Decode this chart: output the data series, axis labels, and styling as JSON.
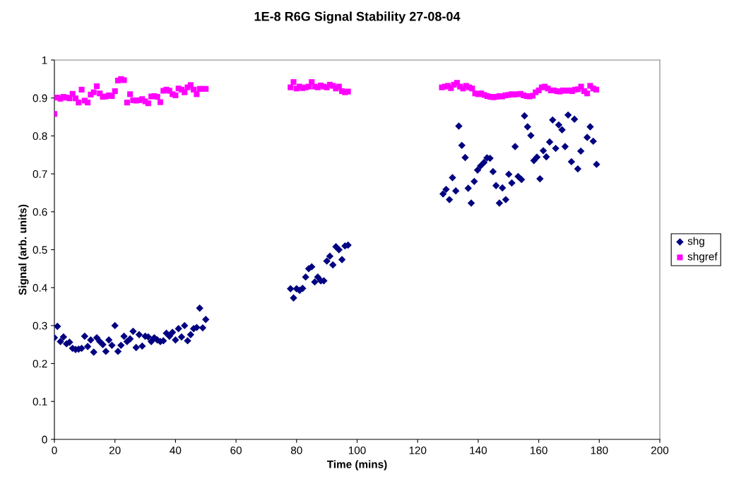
{
  "chart_data": {
    "type": "scatter",
    "title": "1E-8 R6G Signal Stability 27-08-04",
    "xlabel": "Time (mins)",
    "ylabel": "Signal (arb. units)",
    "xlim": [
      0,
      200
    ],
    "xticks": [
      0,
      20,
      40,
      60,
      80,
      100,
      120,
      140,
      160,
      180,
      200
    ],
    "ylim": [
      0,
      1
    ],
    "yticks": [
      0,
      0.1,
      0.2,
      0.3,
      0.4,
      0.5,
      0.6,
      0.7,
      0.8,
      0.9,
      1
    ],
    "grid": false,
    "legend": "right",
    "series": [
      {
        "name": "shg",
        "color": "#000080",
        "marker": "diamond",
        "x": [
          0,
          1,
          2,
          3,
          4,
          5,
          6,
          7,
          8,
          9,
          10,
          11,
          12,
          13,
          14,
          15,
          16,
          17,
          18,
          19,
          20,
          21,
          22,
          23,
          24,
          25,
          26,
          27,
          28,
          29,
          30,
          31,
          32,
          33,
          34,
          35,
          36,
          37,
          38,
          39,
          40,
          41,
          42,
          43,
          44,
          45,
          46,
          47,
          48,
          49,
          50,
          78,
          79,
          80,
          81,
          82,
          83,
          84,
          85,
          86,
          87,
          88,
          89,
          90,
          91,
          92,
          93,
          94,
          95,
          96,
          97,
          128.4,
          129.4,
          130.5,
          131.5,
          132.6,
          133.6,
          134.6,
          135.7,
          136.7,
          137.7,
          138.7,
          139.8,
          140.8,
          141.9,
          142.9,
          143.9,
          144.9,
          145.9,
          147.0,
          148.0,
          149.1,
          150.1,
          151.1,
          152.2,
          153.2,
          154.3,
          155.3,
          156.3,
          157.4,
          158.4,
          159.4,
          160.4,
          161.5,
          162.5,
          163.6,
          164.6,
          165.6,
          166.6,
          167.7,
          168.7,
          169.7,
          170.8,
          171.8,
          172.9,
          173.9,
          176.0,
          177.0,
          178.0,
          179.1
        ],
        "values": [
          0.268,
          0.298,
          0.258,
          0.27,
          0.252,
          0.256,
          0.24,
          0.237,
          0.238,
          0.24,
          0.272,
          0.245,
          0.262,
          0.23,
          0.268,
          0.258,
          0.25,
          0.232,
          0.262,
          0.248,
          0.3,
          0.232,
          0.248,
          0.272,
          0.258,
          0.265,
          0.285,
          0.242,
          0.276,
          0.246,
          0.272,
          0.27,
          0.258,
          0.268,
          0.262,
          0.258,
          0.26,
          0.28,
          0.272,
          0.282,
          0.262,
          0.292,
          0.27,
          0.3,
          0.26,
          0.276,
          0.292,
          0.295,
          0.346,
          0.294,
          0.316,
          0.397,
          0.373,
          0.397,
          0.393,
          0.398,
          0.428,
          0.45,
          0.455,
          0.415,
          0.428,
          0.418,
          0.418,
          0.47,
          0.483,
          0.46,
          0.508,
          0.5,
          0.474,
          0.51,
          0.512,
          0.647,
          0.659,
          0.632,
          0.69,
          0.655,
          0.826,
          0.775,
          0.743,
          0.662,
          0.623,
          0.68,
          0.71,
          0.721,
          0.73,
          0.742,
          0.741,
          0.706,
          0.669,
          0.623,
          0.663,
          0.632,
          0.699,
          0.676,
          0.772,
          0.693,
          0.685,
          0.853,
          0.824,
          0.801,
          0.735,
          0.744,
          0.687,
          0.761,
          0.745,
          0.784,
          0.842,
          0.767,
          0.829,
          0.816,
          0.772,
          0.855,
          0.732,
          0.844,
          0.713,
          0.76,
          0.796,
          0.824,
          0.786,
          0.725
        ]
      },
      {
        "name": "shgref",
        "color": "#ff00ff",
        "marker": "square",
        "x": [
          0,
          1,
          2,
          3,
          4,
          5,
          6,
          7,
          8,
          9,
          10,
          11,
          12,
          13,
          14,
          15,
          16,
          17,
          18,
          19,
          20,
          21,
          22,
          23,
          24,
          25,
          26,
          27,
          28,
          29,
          30,
          31,
          32,
          33,
          34,
          35,
          36,
          37,
          38,
          39,
          40,
          41,
          42,
          43,
          44,
          45,
          46,
          47,
          48,
          49,
          50,
          78,
          79,
          80,
          81,
          82,
          83,
          84,
          85,
          86,
          87,
          88,
          89,
          90,
          91,
          92,
          93,
          94,
          95,
          96,
          97,
          128,
          129,
          130,
          131,
          132,
          133,
          134,
          135,
          136,
          137,
          138,
          139,
          140,
          141,
          142,
          143,
          144,
          145,
          146,
          147,
          148,
          149,
          150,
          151,
          152,
          153,
          154,
          155,
          156,
          157,
          158,
          159,
          160,
          161,
          162,
          163,
          164,
          165,
          166,
          167,
          168,
          169,
          170,
          171,
          172,
          173,
          174,
          175,
          176,
          177,
          178,
          179
        ],
        "values": [
          0.858,
          0.901,
          0.898,
          0.903,
          0.901,
          0.899,
          0.911,
          0.899,
          0.888,
          0.922,
          0.893,
          0.888,
          0.909,
          0.915,
          0.931,
          0.912,
          0.903,
          0.904,
          0.907,
          0.905,
          0.918,
          0.946,
          0.95,
          0.947,
          0.888,
          0.91,
          0.894,
          0.893,
          0.894,
          0.897,
          0.891,
          0.886,
          0.904,
          0.905,
          0.903,
          0.889,
          0.919,
          0.922,
          0.919,
          0.91,
          0.907,
          0.925,
          0.922,
          0.915,
          0.928,
          0.934,
          0.922,
          0.91,
          0.924,
          0.924,
          0.924,
          0.928,
          0.942,
          0.925,
          0.93,
          0.926,
          0.928,
          0.93,
          0.942,
          0.93,
          0.928,
          0.933,
          0.93,
          0.928,
          0.935,
          0.932,
          0.925,
          0.93,
          0.918,
          0.915,
          0.917,
          0.928,
          0.93,
          0.932,
          0.926,
          0.935,
          0.94,
          0.93,
          0.925,
          0.932,
          0.928,
          0.925,
          0.912,
          0.91,
          0.912,
          0.908,
          0.905,
          0.903,
          0.902,
          0.903,
          0.905,
          0.904,
          0.907,
          0.908,
          0.91,
          0.909,
          0.91,
          0.911,
          0.907,
          0.905,
          0.904,
          0.906,
          0.915,
          0.92,
          0.928,
          0.93,
          0.925,
          0.92,
          0.92,
          0.918,
          0.917,
          0.92,
          0.919,
          0.92,
          0.918,
          0.922,
          0.923,
          0.93,
          0.918,
          0.912,
          0.932,
          0.925,
          0.922
        ]
      }
    ]
  }
}
